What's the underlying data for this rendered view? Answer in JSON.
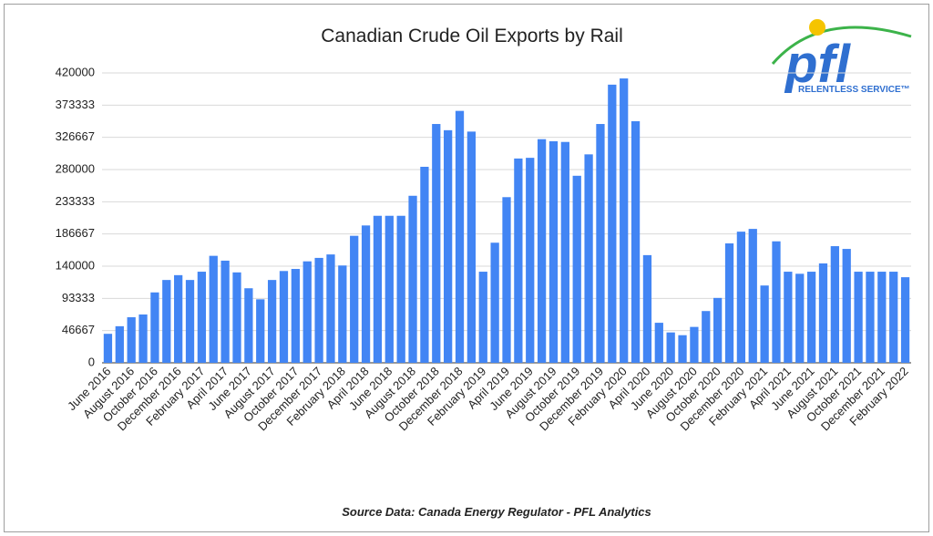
{
  "chart_data": {
    "type": "bar",
    "title": "Canadian Crude Oil Exports by Rail",
    "source": "Source Data: Canada Energy Regulator - PFL Analytics",
    "logo": {
      "text": "pfl",
      "tagline": "RELENTLESS SERVICE™"
    },
    "categories": [
      "June 2016",
      null,
      "August 2016",
      null,
      "October 2016",
      null,
      "December 2016",
      null,
      "February 2017",
      null,
      "April 2017",
      null,
      "June 2017",
      null,
      "August 2017",
      null,
      "October 2017",
      null,
      "December 2017",
      null,
      "February 2018",
      null,
      "April 2018",
      null,
      "June 2018",
      null,
      "August 2018",
      null,
      "October 2018",
      null,
      "December 2018",
      null,
      "February 2019",
      null,
      "April 2019",
      null,
      "June 2019",
      null,
      "August 2019",
      null,
      "October 2019",
      null,
      "December 2019",
      null,
      "February 2020",
      null,
      "April 2020",
      null,
      "June 2020",
      null,
      "August 2020",
      null,
      "October 2020",
      null,
      "December 2020",
      null,
      "February 2021",
      null,
      "April 2021",
      null,
      "June 2021",
      null,
      "August 2021",
      null,
      "October 2021",
      null,
      "December 2021",
      null,
      "February 2022"
    ],
    "values": [
      42000,
      53000,
      66000,
      70000,
      102000,
      120000,
      127000,
      120000,
      132000,
      155000,
      148000,
      131000,
      108000,
      92000,
      120000,
      133000,
      136000,
      147000,
      152000,
      157000,
      141000,
      184000,
      199000,
      213000,
      213000,
      213000,
      242000,
      284000,
      346000,
      337000,
      365000,
      335000,
      132000,
      174000,
      240000,
      296000,
      297000,
      324000,
      321000,
      320000,
      271000,
      302000,
      346000,
      403000,
      412000,
      350000,
      156000,
      58000,
      44000,
      40000,
      52000,
      75000,
      94000,
      173000,
      190000,
      194000,
      112000,
      176000,
      132000,
      129000,
      132000,
      144000,
      169000,
      165000,
      132000,
      132000,
      132000,
      132000,
      124000
    ],
    "color": "#4285f4",
    "ylim": [
      0,
      420000
    ],
    "yticks": [
      0,
      46667,
      93333,
      140000,
      186667,
      233333,
      280000,
      326667,
      373333,
      420000
    ],
    "grid": true
  }
}
